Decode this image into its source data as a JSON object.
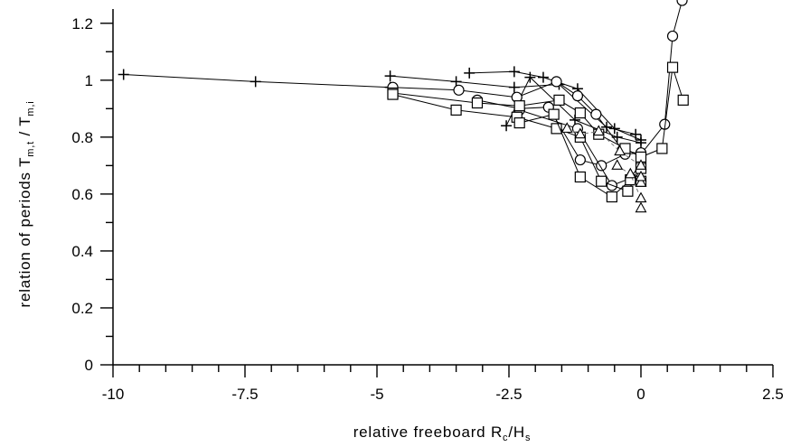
{
  "chart_data": {
    "type": "scatter",
    "title": "",
    "xlabel": {
      "base": "relative freeboard R",
      "sub1": "c",
      "mid": "/H",
      "sub2": "s"
    },
    "ylabel": {
      "base": "relation of periods T",
      "sub1": "m,t",
      "mid": " / T",
      "sub2": "m,i"
    },
    "xlim": [
      -10,
      2.5
    ],
    "ylim": [
      0,
      1.25
    ],
    "x_ticks": [
      -10,
      -7.5,
      -5,
      -2.5,
      0,
      2.5
    ],
    "x_tick_labels": [
      "-10",
      "-7.5",
      "-5",
      "-2.5",
      "0",
      "2.5"
    ],
    "y_ticks": [
      0,
      0.2,
      0.4,
      0.6,
      0.8,
      1,
      1.2
    ],
    "y_tick_labels": [
      "0",
      "0.2",
      "0.4",
      "0.6",
      "0.8",
      "1",
      "1.2"
    ],
    "grid": false,
    "series": [
      {
        "marker": "plus",
        "line": "solid",
        "points": [
          [
            -9.8,
            1.02
          ],
          [
            -7.3,
            0.995
          ],
          [
            -4.75,
            0.975
          ]
        ]
      },
      {
        "marker": "plus",
        "line": "solid",
        "points": [
          [
            -4.75,
            1.015
          ],
          [
            -3.5,
            0.995
          ],
          [
            -2.4,
            0.975
          ],
          [
            -1.55,
            0.985
          ],
          [
            -0.65,
            0.835
          ],
          [
            -0.1,
            0.81
          ]
        ]
      },
      {
        "marker": "plus",
        "line": "solid",
        "points": [
          [
            -3.25,
            1.025
          ],
          [
            -2.4,
            1.03
          ],
          [
            -1.85,
            1.01
          ],
          [
            -1.2,
            0.97
          ],
          [
            -0.5,
            0.83
          ],
          [
            0.0,
            0.79
          ]
        ]
      },
      {
        "marker": "plus",
        "line": "solid",
        "points": [
          [
            -2.55,
            0.84
          ],
          [
            -2.1,
            1.01
          ],
          [
            -1.25,
            0.86
          ],
          [
            -0.45,
            0.8
          ],
          [
            0.0,
            0.78
          ]
        ]
      },
      {
        "marker": "circle",
        "line": "solid",
        "points": [
          [
            -4.7,
            0.975
          ],
          [
            -3.45,
            0.965
          ],
          [
            -2.35,
            0.94
          ],
          [
            -1.6,
            0.995
          ],
          [
            -1.2,
            0.945
          ],
          [
            -0.85,
            0.88
          ],
          [
            -0.35,
            0.755
          ],
          [
            0.0,
            0.74
          ],
          [
            0.45,
            0.845
          ],
          [
            0.6,
            1.155
          ],
          [
            0.78,
            1.28
          ]
        ]
      },
      {
        "marker": "circle",
        "line": "solid",
        "points": [
          [
            -3.1,
            0.93
          ],
          [
            -2.3,
            0.9
          ],
          [
            -1.75,
            0.905
          ],
          [
            -1.15,
            0.72
          ],
          [
            -0.75,
            0.7
          ],
          [
            -0.3,
            0.74
          ],
          [
            0.0,
            0.745
          ]
        ]
      },
      {
        "marker": "circle",
        "line": "solid",
        "points": [
          [
            -2.3,
            0.895
          ],
          [
            -1.2,
            0.83
          ],
          [
            -0.55,
            0.63
          ],
          [
            -0.2,
            0.655
          ],
          [
            0.0,
            0.71
          ]
        ]
      },
      {
        "marker": "square",
        "line": "solid",
        "points": [
          [
            -4.7,
            0.955
          ],
          [
            -3.1,
            0.92
          ],
          [
            -2.3,
            0.91
          ],
          [
            -1.55,
            0.93
          ],
          [
            -1.15,
            0.885
          ],
          [
            -0.8,
            0.81
          ],
          [
            -0.3,
            0.76
          ],
          [
            0.0,
            0.73
          ],
          [
            0.4,
            0.76
          ],
          [
            0.6,
            1.045
          ],
          [
            0.8,
            0.93
          ]
        ]
      },
      {
        "marker": "square",
        "line": "solid",
        "points": [
          [
            -4.7,
            0.95
          ],
          [
            -3.5,
            0.895
          ],
          [
            -2.35,
            0.87
          ],
          [
            -1.6,
            0.83
          ],
          [
            -1.15,
            0.8
          ],
          [
            -0.75,
            0.645
          ],
          [
            -0.25,
            0.61
          ],
          [
            0.0,
            0.69
          ]
        ]
      },
      {
        "marker": "square",
        "line": "solid",
        "points": [
          [
            -2.3,
            0.85
          ],
          [
            -1.65,
            0.88
          ],
          [
            -1.15,
            0.66
          ],
          [
            -0.55,
            0.59
          ],
          [
            -0.2,
            0.65
          ],
          [
            0.0,
            0.645
          ]
        ]
      },
      {
        "marker": "triangle",
        "line": "dashed",
        "points": [
          [
            -1.4,
            0.83
          ],
          [
            -1.15,
            0.81
          ],
          [
            -0.8,
            0.82
          ],
          [
            -0.4,
            0.75
          ],
          [
            0.0,
            0.7
          ]
        ]
      },
      {
        "marker": "triangle",
        "line": "dashed",
        "points": [
          [
            -0.45,
            0.7
          ],
          [
            -0.2,
            0.67
          ],
          [
            0.0,
            0.585
          ]
        ]
      },
      {
        "marker": "triangle",
        "line": "none",
        "points": [
          [
            0.0,
            0.55
          ],
          [
            0.0,
            0.64
          ],
          [
            0.0,
            0.66
          ]
        ]
      }
    ]
  }
}
